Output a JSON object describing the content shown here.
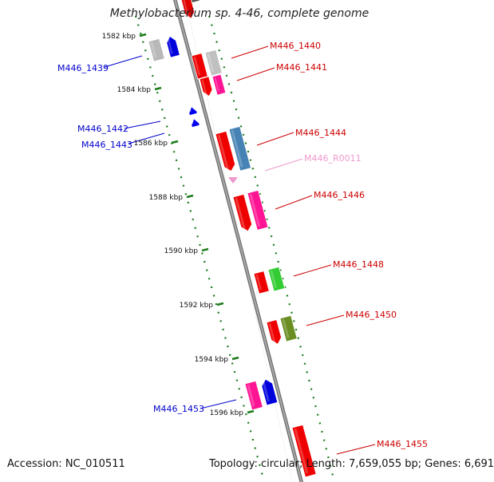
{
  "title": "Methylobacterium sp. 4-46, complete genome",
  "accession": "Accession: NC_010511",
  "topology": "Topology: circular; Length: 7,659,055 bp; Genes: 6,691",
  "colors": {
    "forward_label": "#cc0000",
    "reverse_label": "#0000cc",
    "rna_label": "#ee99cc",
    "axis": "#888888",
    "tick": "#1a7a1a"
  },
  "ticks": [
    {
      "label": "1582 kbp"
    },
    {
      "label": "1584 kbp"
    },
    {
      "label": "1586 kbp"
    },
    {
      "label": "1588 kbp"
    },
    {
      "label": "1590 kbp"
    },
    {
      "label": "1592 kbp"
    },
    {
      "label": "1594 kbp"
    },
    {
      "label": "1596 kbp"
    }
  ],
  "gene_labels": [
    {
      "text": "M446_1439",
      "strand": "reverse"
    },
    {
      "text": "M446_1440",
      "strand": "forward"
    },
    {
      "text": "M446_1441",
      "strand": "forward"
    },
    {
      "text": "M446_1442",
      "strand": "reverse"
    },
    {
      "text": "M446_1443",
      "strand": "reverse"
    },
    {
      "text": "M446_1444",
      "strand": "forward"
    },
    {
      "text": "M446_R0011",
      "strand": "rna"
    },
    {
      "text": "M446_1446",
      "strand": "forward"
    },
    {
      "text": "M446_1448",
      "strand": "forward"
    },
    {
      "text": "M446_1450",
      "strand": "forward"
    },
    {
      "text": "M446_1453",
      "strand": "reverse"
    },
    {
      "text": "M446_1455",
      "strand": "forward"
    }
  ]
}
